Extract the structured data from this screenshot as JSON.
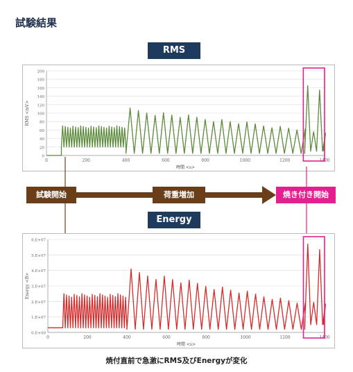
{
  "page": {
    "title": "試験結果",
    "caption": "焼付直前で急激にRMS及びEnergyが変化"
  },
  "timeline": {
    "start_label": "試験開始",
    "load_label": "荷重増加",
    "burn_label": "焼き付き開始"
  },
  "colors": {
    "header": "#1e3a5c",
    "arrow": "#6b3e1a",
    "highlight": "#e3208f",
    "rms_line": "#5b8a3a",
    "energy_line": "#d42a2a"
  },
  "chart_data": [
    {
      "id": "rms",
      "header": "RMS",
      "type": "line",
      "xlabel": "時間 <s>",
      "ylabel": "RMS <mV>",
      "xlim": [
        0,
        1400
      ],
      "ylim": [
        0,
        200
      ],
      "xticks": [
        0,
        200,
        400,
        600,
        800,
        1000,
        1200,
        1400
      ],
      "xtick_labels": [
        "0",
        "200",
        "400",
        "600",
        "800",
        "1000",
        "1200",
        "1400"
      ],
      "yticks": [
        0,
        20,
        40,
        60,
        80,
        100,
        120,
        140,
        160,
        180,
        200
      ],
      "ytick_labels": [
        "0",
        "20",
        "40",
        "60",
        "80",
        "100",
        "120",
        "140",
        "160",
        "180",
        "200"
      ],
      "segments": [
        {
          "t0": 0,
          "t1": 75,
          "pattern": "flat",
          "base": 0
        },
        {
          "t0": 75,
          "t1": 400,
          "pattern": "osc",
          "period": 13,
          "lo": 20,
          "hi": 70
        },
        {
          "t0": 400,
          "t1": 1300,
          "pattern": "osc",
          "period": 42,
          "lo": 5,
          "hi_start": 112,
          "hi_end": 62
        },
        {
          "t0": 1300,
          "t1": 1395,
          "pattern": "burst",
          "period": 30,
          "lo": 10,
          "hi": 165
        }
      ],
      "highlight_range": [
        1300,
        1400
      ]
    },
    {
      "id": "energy",
      "header": "Energy",
      "type": "line",
      "xlabel": "時間 <s>",
      "ylabel": "Energy <B>",
      "xlim": [
        0,
        1400
      ],
      "ylim": [
        0,
        60000000
      ],
      "xticks": [
        0,
        200,
        400,
        600,
        800,
        1000,
        1200,
        1400
      ],
      "xtick_labels": [
        "0",
        "200",
        "400",
        "600",
        "800",
        "1000",
        "1200",
        "1400"
      ],
      "yticks": [
        0,
        10000000,
        20000000,
        30000000,
        40000000,
        50000000,
        60000000
      ],
      "ytick_labels": [
        "0.E+00",
        "1.E+07",
        "2.E+07",
        "3.E+07",
        "4.E+07",
        "5.E+07",
        "6.E+07"
      ],
      "segments": [
        {
          "t0": 0,
          "t1": 75,
          "pattern": "flat",
          "base": 3000000
        },
        {
          "t0": 75,
          "t1": 400,
          "pattern": "osc",
          "period": 13,
          "lo": 3000000,
          "hi": 25000000
        },
        {
          "t0": 400,
          "t1": 1300,
          "pattern": "osc",
          "period": 42,
          "lo": 2000000,
          "hi_start": 41000000,
          "hi_end": 19000000
        },
        {
          "t0": 1300,
          "t1": 1395,
          "pattern": "burst",
          "period": 30,
          "lo": 5000000,
          "hi": 57000000
        }
      ],
      "highlight_range": [
        1300,
        1400
      ]
    }
  ]
}
